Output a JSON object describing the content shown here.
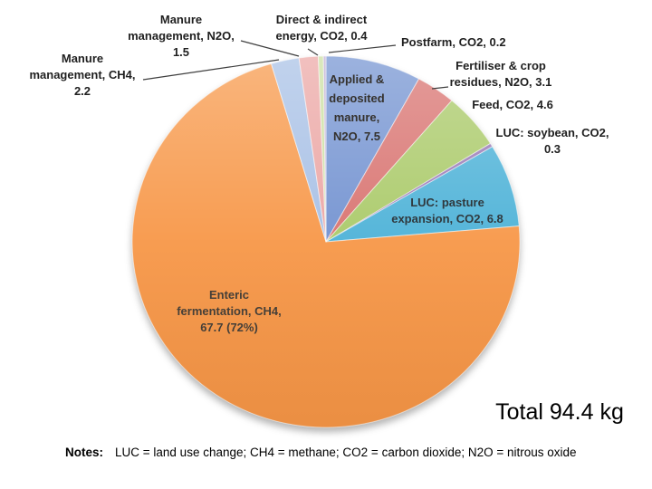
{
  "chart_data": {
    "type": "pie",
    "title": "",
    "total": 94.4,
    "total_label": "Total 94.4 kg",
    "legend_position": "none",
    "labels_position": "outside-with-leader-lines; large slices labeled inside",
    "slices": [
      {
        "name": "Applied & deposited manure, N2O",
        "value": 7.5,
        "color": "#7191D0",
        "label": "Applied &\ndeposited\nmanure,\nN2O, 7.5"
      },
      {
        "name": "Fertiliser & crop residues, N2O",
        "value": 3.1,
        "color": "#D8716E",
        "label": "Fertiliser & crop\nresidues, N2O, 3.1"
      },
      {
        "name": "Feed, CO2",
        "value": 4.6,
        "color": "#A9C967",
        "label": "Feed, CO2, 4.6"
      },
      {
        "name": "LUC: soybean, CO2",
        "value": 0.3,
        "color": "#9879B6",
        "label": "LUC: soybean, CO2,\n0.3"
      },
      {
        "name": "LUC: pasture expansion, CO2",
        "value": 6.8,
        "color": "#4BB1D7",
        "label": "LUC: pasture\nexpansion, CO2, 6.8"
      },
      {
        "name": "Enteric fermentation, CH4",
        "value": 67.7,
        "percent_shown": "72%",
        "color": "#F79646",
        "label": "Enteric\nfermentation, CH4,\n67.7 (72%)"
      },
      {
        "name": "Manure management, CH4",
        "value": 2.2,
        "color": "#A6BFE5",
        "label": "Manure\nmanagement, CH4,\n2.2"
      },
      {
        "name": "Manure management, N2O",
        "value": 1.5,
        "color": "#EBA5A3",
        "label": "Manure\nmanagement, N2O,\n1.5"
      },
      {
        "name": "Direct & indirect energy, CO2",
        "value": 0.4,
        "color": "#CBDFA0",
        "label": "Direct & indirect\nenergy, CO2, 0.4"
      },
      {
        "name": "Postfarm, CO2",
        "value": 0.2,
        "color": "#BCABD2",
        "label": "Postfarm, CO2, 0.2"
      }
    ],
    "notes_label": "Notes:",
    "notes_text": "LUC = land use change; CH4 = methane; CO2 = carbon dioxide; N2O = nitrous oxide"
  }
}
